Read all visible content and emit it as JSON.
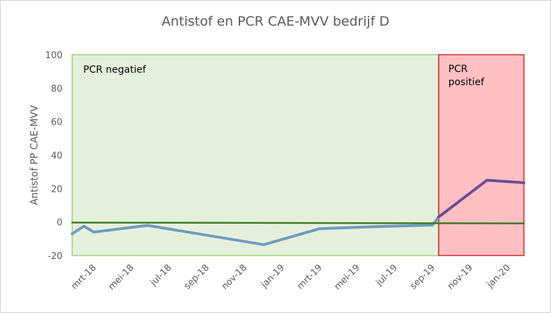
{
  "chart_data": {
    "type": "line",
    "title": "Antistof  en PCR CAE-MVV bedrijf D",
    "ylabel": "Antistof PP CAE-MVV",
    "xlabel": "",
    "ylim": [
      -20,
      100
    ],
    "yticks": [
      -20,
      0,
      20,
      40,
      60,
      80,
      100
    ],
    "x_tick_labels": [
      "mrt-18",
      "mei-18",
      "jul-18",
      "sep-18",
      "nov-18",
      "jan-19",
      "mrt-19",
      "mei-19",
      "jul-19",
      "sep-19",
      "nov-19",
      "jan-20"
    ],
    "x_range": [
      "2018-03-01",
      "2020-03-01"
    ],
    "regions": [
      {
        "label": "PCR negatief",
        "start": "2018-03-01",
        "end": "2019-10-15",
        "color": "#e5f0dc"
      },
      {
        "label": "PCR positief",
        "start": "2019-10-15",
        "end": "2020-03-01",
        "color": "#ffbfc3"
      }
    ],
    "series": [
      {
        "color": "#6f9bbd",
        "points": [
          [
            "2018-03-01",
            -7
          ],
          [
            "2018-03-20",
            -2.5
          ],
          [
            "2018-04-05",
            -6
          ],
          [
            "2018-07-01",
            -2
          ],
          [
            "2019-01-05",
            -13.5
          ],
          [
            "2019-04-05",
            -4
          ],
          [
            "2019-07-01",
            -2.8
          ],
          [
            "2019-10-05",
            -1.8
          ],
          [
            "2019-10-15",
            3
          ]
        ]
      },
      {
        "color": "#6a4c93",
        "points": [
          [
            "2019-10-15",
            3
          ],
          [
            "2020-01-01",
            25
          ],
          [
            "2020-03-01",
            23.5
          ]
        ]
      },
      {
        "color": "#3b7a22",
        "points": [
          [
            "2018-03-01",
            -0.3
          ],
          [
            "2020-03-01",
            -0.8
          ]
        ]
      }
    ]
  }
}
